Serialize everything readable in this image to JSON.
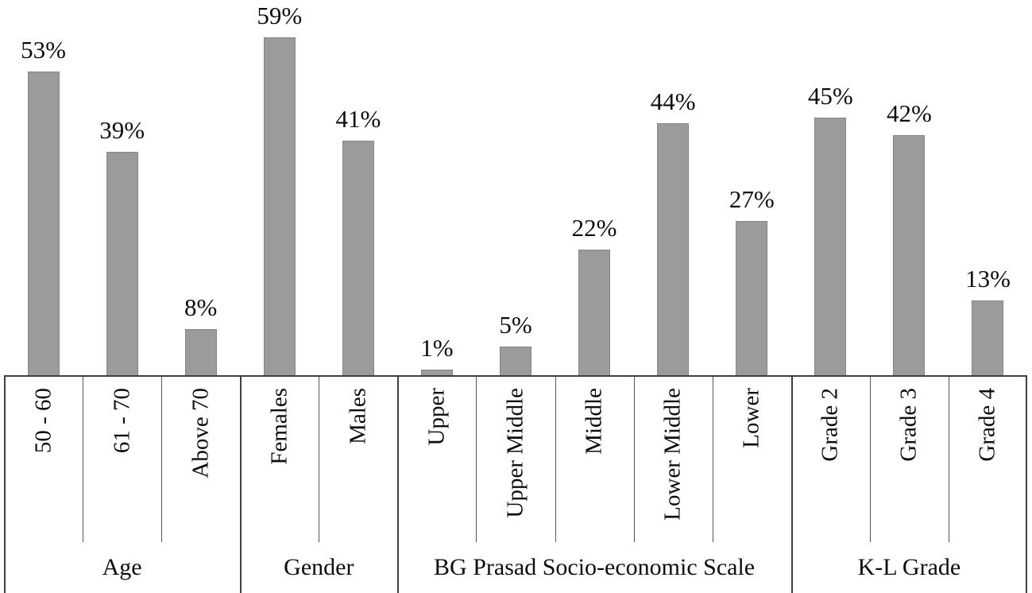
{
  "chart_data": {
    "type": "bar",
    "title": "",
    "xlabel": "",
    "ylabel": "",
    "ylim": [
      0,
      65
    ],
    "grid": false,
    "legend": false,
    "bar_color": "#9b9b9b",
    "bar_border_color": "#868686",
    "axis_color": "#3f3f3f",
    "text_color": "#0d0d0d",
    "groups": [
      {
        "label": "Age",
        "categories": [
          "50 - 60",
          "61 - 70",
          "Above 70"
        ],
        "values": [
          53,
          39,
          8
        ],
        "value_labels": [
          "53%",
          "39%",
          "8%"
        ]
      },
      {
        "label": "Gender",
        "categories": [
          "Females",
          "Males"
        ],
        "values": [
          59,
          41
        ],
        "value_labels": [
          "59%",
          "41%"
        ]
      },
      {
        "label": "BG Prasad Socio-economic Scale",
        "categories": [
          "Upper",
          "Upper Middle",
          "Middle",
          "Lower Middle",
          "Lower"
        ],
        "values": [
          1,
          5,
          22,
          44,
          27
        ],
        "value_labels": [
          "1%",
          "5%",
          "22%",
          "44%",
          "27%"
        ]
      },
      {
        "label": "K-L Grade",
        "categories": [
          "Grade 2",
          "Grade 3",
          "Grade 4"
        ],
        "values": [
          45,
          42,
          13
        ],
        "value_labels": [
          "45%",
          "42%",
          "13%"
        ]
      }
    ]
  }
}
